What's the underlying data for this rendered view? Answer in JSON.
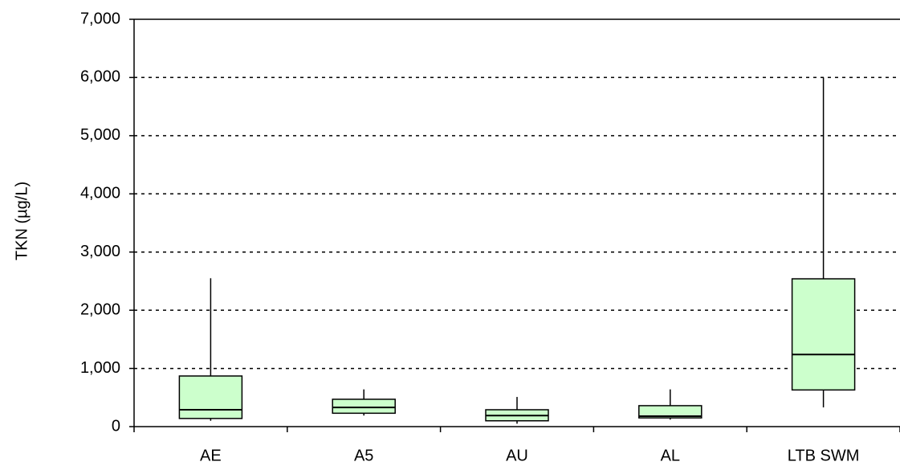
{
  "chart_data": {
    "type": "box",
    "y_label": "TKN (µg/L)",
    "categories": [
      "AE",
      "A5",
      "AU",
      "AL",
      "LTB SWM"
    ],
    "min": [
      100,
      190,
      50,
      120,
      330
    ],
    "q1": [
      140,
      230,
      100,
      150,
      630
    ],
    "median": [
      290,
      330,
      190,
      180,
      1240
    ],
    "q3": [
      870,
      470,
      290,
      360,
      2540
    ],
    "max": [
      2550,
      640,
      510,
      640,
      6000
    ],
    "color": "#ccffcc",
    "ylim": [
      0,
      7000
    ],
    "yticks": [
      0,
      {
        "value": 1000,
        "label": "1,000"
      },
      {
        "value": 2000,
        "label": "2,000"
      },
      {
        "value": 3000,
        "label": "3,000"
      },
      {
        "value": 4000,
        "label": "4,000"
      },
      {
        "value": 5000,
        "label": "5,000"
      },
      {
        "value": 6000,
        "label": "6,000"
      },
      {
        "value": 7000,
        "label": "7,000"
      }
    ],
    "grid": true
  }
}
